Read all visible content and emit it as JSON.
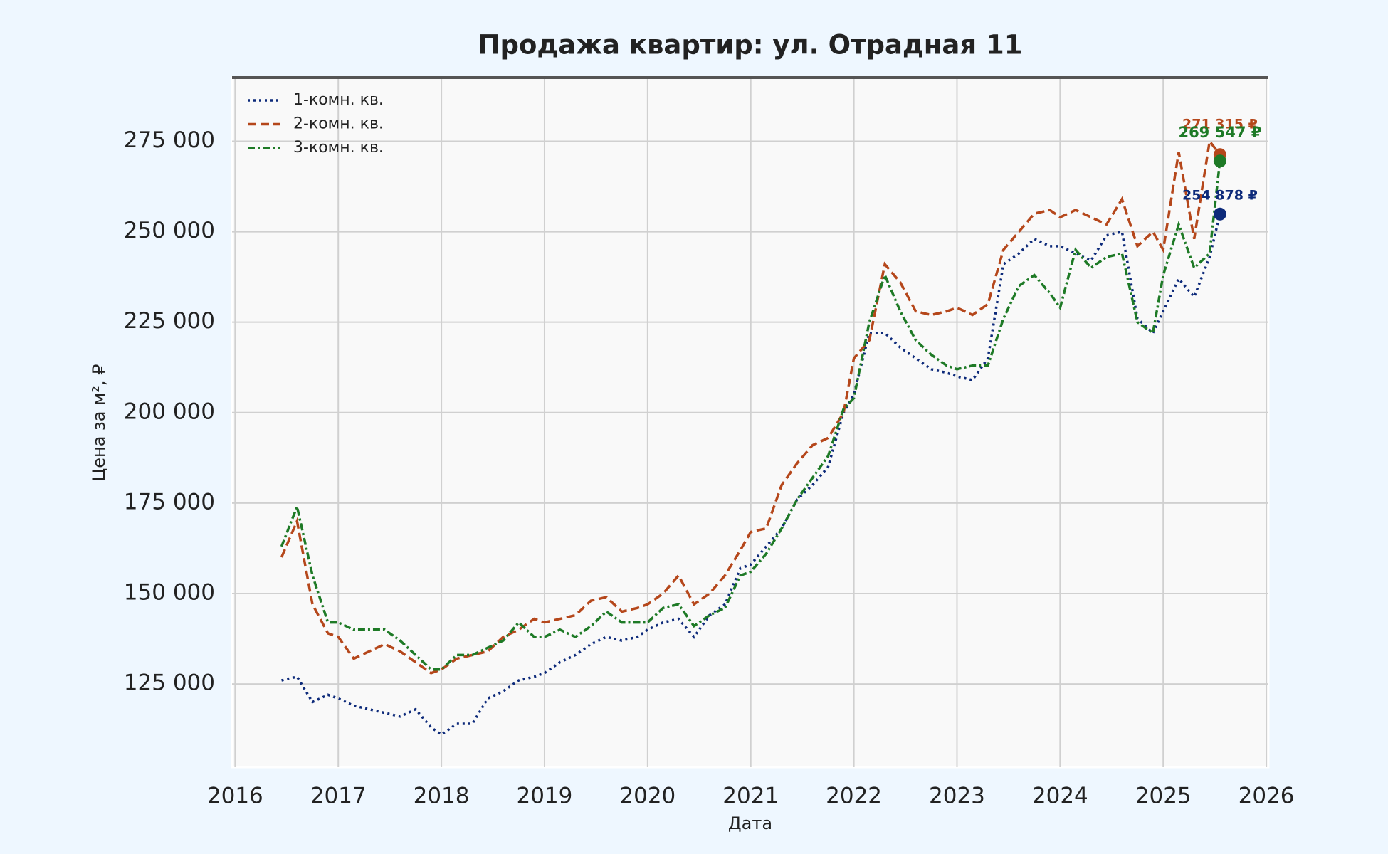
{
  "chart_data": {
    "type": "line",
    "title": "Продажа квартир: ул. Отрадная 11",
    "x_label": "Дата",
    "y_label": "Цена за м², ₽",
    "x": [
      2016.45,
      2016.6,
      2016.75,
      2016.9,
      2017.0,
      2017.15,
      2017.3,
      2017.45,
      2017.6,
      2017.75,
      2017.9,
      2018.0,
      2018.15,
      2018.3,
      2018.45,
      2018.6,
      2018.75,
      2018.9,
      2019.0,
      2019.15,
      2019.3,
      2019.45,
      2019.6,
      2019.75,
      2019.9,
      2020.0,
      2020.15,
      2020.3,
      2020.45,
      2020.6,
      2020.75,
      2020.9,
      2021.0,
      2021.15,
      2021.3,
      2021.45,
      2021.6,
      2021.75,
      2021.9,
      2022.0,
      2022.15,
      2022.3,
      2022.45,
      2022.6,
      2022.75,
      2022.9,
      2023.0,
      2023.15,
      2023.3,
      2023.45,
      2023.6,
      2023.75,
      2023.9,
      2024.0,
      2024.15,
      2024.3,
      2024.45,
      2024.6,
      2024.75,
      2024.9,
      2025.0,
      2025.15,
      2025.3,
      2025.45,
      2025.55
    ],
    "series": [
      {
        "name": "1-комн. кв.",
        "color": "#0d2a7a",
        "dash": "3,5",
        "values": [
          126000,
          127000,
          120000,
          122000,
          121000,
          119000,
          118000,
          117000,
          116000,
          118000,
          113000,
          111000,
          114000,
          114000,
          121000,
          123000,
          126000,
          127000,
          128000,
          131000,
          133000,
          136000,
          138000,
          137000,
          138000,
          140000,
          142000,
          143000,
          138000,
          144000,
          147000,
          157000,
          158000,
          163000,
          168000,
          176000,
          180000,
          185000,
          200000,
          205000,
          222000,
          222000,
          218000,
          215000,
          212000,
          211000,
          210000,
          209000,
          215000,
          241000,
          244000,
          248000,
          246000,
          246000,
          244000,
          242000,
          249000,
          250000,
          226000,
          222000,
          228000,
          237000,
          232000,
          243000,
          254878
        ]
      },
      {
        "name": "2-комн. кв.",
        "color": "#b5471b",
        "dash": "12,6",
        "values": [
          160000,
          170000,
          147000,
          139000,
          138000,
          132000,
          134000,
          136000,
          134000,
          131000,
          128000,
          129000,
          132000,
          133000,
          134000,
          138000,
          140000,
          143000,
          142000,
          143000,
          144000,
          148000,
          149000,
          145000,
          146000,
          147000,
          150000,
          155000,
          147000,
          150000,
          155000,
          162000,
          167000,
          168000,
          180000,
          186000,
          191000,
          193000,
          200000,
          215000,
          220000,
          241000,
          236000,
          228000,
          227000,
          228000,
          229000,
          227000,
          230000,
          245000,
          250000,
          255000,
          256000,
          254000,
          256000,
          254000,
          252000,
          259000,
          246000,
          250000,
          245000,
          272000,
          248000,
          275000,
          271315
        ]
      },
      {
        "name": "3-комн. кв.",
        "color": "#1e7a26",
        "dash": "10,4,3,4",
        "values": [
          163000,
          174000,
          155000,
          142000,
          142000,
          140000,
          140000,
          140000,
          137000,
          133000,
          129000,
          129000,
          133000,
          133000,
          135000,
          137000,
          142000,
          138000,
          138000,
          140000,
          138000,
          141000,
          145000,
          142000,
          142000,
          142000,
          146000,
          147000,
          141000,
          144000,
          146000,
          155000,
          156000,
          161000,
          168000,
          176000,
          182000,
          188000,
          201000,
          204000,
          225000,
          238000,
          228000,
          220000,
          216000,
          213000,
          212000,
          213000,
          213000,
          226000,
          235000,
          238000,
          233000,
          229000,
          245000,
          240000,
          243000,
          244000,
          225000,
          222000,
          238000,
          252000,
          240000,
          244000,
          269547
        ]
      }
    ],
    "annotations": [
      {
        "text": "271 315 ₽",
        "x": 2025.55,
        "y": 271315,
        "color": "#b5471b"
      },
      {
        "text": "269 547 ₽",
        "x": 2025.55,
        "y": 269547,
        "color": "#1e7a26"
      },
      {
        "text": "254 878 ₽",
        "x": 2025.55,
        "y": 254878,
        "color": "#0d2a7a"
      }
    ],
    "xlim": [
      2015.97,
      2026.02
    ],
    "ylim": [
      102000,
      292600
    ],
    "xticks": [
      2016,
      2017,
      2018,
      2019,
      2020,
      2021,
      2022,
      2023,
      2024,
      2025,
      2026
    ],
    "yticks": [
      {
        "value": 125000,
        "label": "125 000"
      },
      {
        "value": 150000,
        "label": "150 000"
      },
      {
        "value": 175000,
        "label": "175 000"
      },
      {
        "value": 200000,
        "label": "200 000"
      },
      {
        "value": 225000,
        "label": "225 000"
      },
      {
        "value": 250000,
        "label": "250 000"
      },
      {
        "value": 275000,
        "label": "275 000"
      }
    ],
    "grid": true,
    "legend": "upper left"
  }
}
